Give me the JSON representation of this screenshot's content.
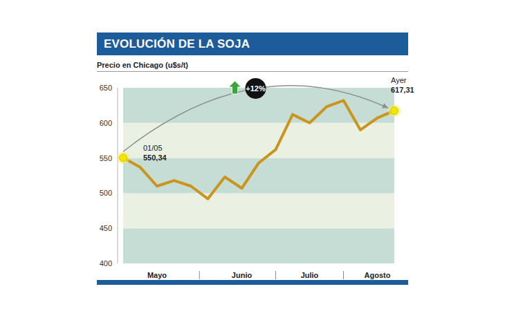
{
  "chart_data": {
    "type": "line",
    "title": "EVOLUCIÓN DE LA SOJA",
    "subtitle": "Precio en Chicago (u$s/t)",
    "categories": [
      null,
      null,
      "Mayo",
      null,
      null,
      null,
      null,
      "Junio",
      null,
      null,
      null,
      "Julio",
      null,
      null,
      null,
      "Agosto",
      null
    ],
    "values": [
      550.34,
      537,
      510,
      518,
      510,
      492,
      523,
      507,
      543,
      562,
      612,
      600,
      623,
      632,
      590,
      607,
      617.31
    ],
    "value_labels": [
      "550,34",
      null,
      null,
      null,
      null,
      null,
      null,
      null,
      null,
      null,
      null,
      null,
      null,
      null,
      null,
      null,
      "617,31"
    ],
    "annotations": {
      "point_labels": [
        "01/05",
        null,
        null,
        null,
        null,
        null,
        null,
        null,
        null,
        null,
        null,
        null,
        null,
        null,
        null,
        null,
        "Ayer"
      ],
      "change": "+12%"
    },
    "color": "#c9951c",
    "ylim": [
      400,
      650
    ],
    "yticks": [
      400,
      450,
      500,
      550,
      600,
      650
    ],
    "grid": true
  }
}
